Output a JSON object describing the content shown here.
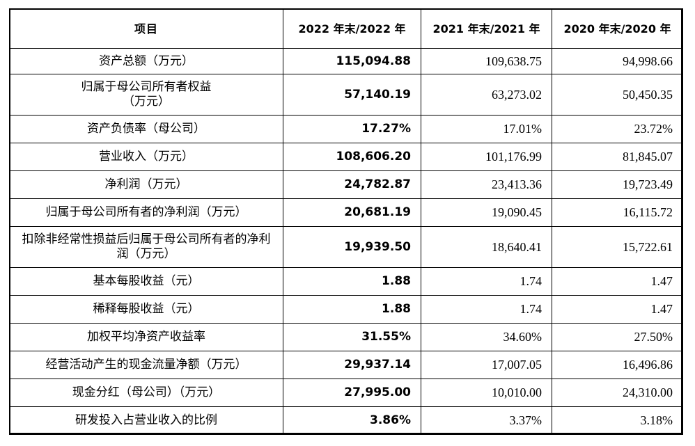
{
  "table": {
    "headers": [
      "项目",
      "2022 年末/2022 年",
      "2021 年末/2021 年",
      "2020 年末/2020 年"
    ],
    "rows": [
      {
        "label": "资产总额（万元）",
        "v2022": "115,094.88",
        "v2021": "109,638.75",
        "v2020": "94,998.66"
      },
      {
        "label": "归属于母公司所有者权益\n（万元）",
        "v2022": "57,140.19",
        "v2021": "63,273.02",
        "v2020": "50,450.35"
      },
      {
        "label": "资产负债率（母公司）",
        "v2022": "17.27%",
        "v2021": "17.01%",
        "v2020": "23.72%"
      },
      {
        "label": "营业收入（万元）",
        "v2022": "108,606.20",
        "v2021": "101,176.99",
        "v2020": "81,845.07"
      },
      {
        "label": "净利润（万元）",
        "v2022": "24,782.87",
        "v2021": "23,413.36",
        "v2020": "19,723.49"
      },
      {
        "label": "归属于母公司所有者的净利润（万元）",
        "v2022": "20,681.19",
        "v2021": "19,090.45",
        "v2020": "16,115.72"
      },
      {
        "label": "扣除非经常性损益后归属于母公司所有者的净利润（万元）",
        "v2022": "19,939.50",
        "v2021": "18,640.41",
        "v2020": "15,722.61"
      },
      {
        "label": "基本每股收益（元）",
        "v2022": "1.88",
        "v2021": "1.74",
        "v2020": "1.47"
      },
      {
        "label": "稀释每股收益（元）",
        "v2022": "1.88",
        "v2021": "1.74",
        "v2020": "1.47"
      },
      {
        "label": "加权平均净资产收益率",
        "v2022": "31.55%",
        "v2021": "34.60%",
        "v2020": "27.50%"
      },
      {
        "label": "经营活动产生的现金流量净额（万元）",
        "v2022": "29,937.14",
        "v2021": "17,007.05",
        "v2020": "16,496.86"
      },
      {
        "label": "现金分红（母公司）（万元）",
        "v2022": "27,995.00",
        "v2021": "10,010.00",
        "v2020": "24,310.00"
      },
      {
        "label": "研发投入占营业收入的比例",
        "v2022": "3.86%",
        "v2021": "3.37%",
        "v2020": "3.18%"
      }
    ]
  }
}
